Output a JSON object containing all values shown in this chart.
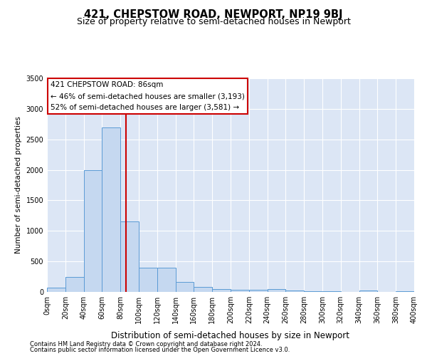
{
  "title": "421, CHEPSTOW ROAD, NEWPORT, NP19 9BJ",
  "subtitle": "Size of property relative to semi-detached houses in Newport",
  "xlabel": "Distribution of semi-detached houses by size in Newport",
  "ylabel": "Number of semi-detached properties",
  "property_size": 86,
  "annotation_line1": "421 CHEPSTOW ROAD: 86sqm",
  "annotation_line2": "← 46% of semi-detached houses are smaller (3,193)",
  "annotation_line3": "52% of semi-detached houses are larger (3,581) →",
  "footnote1": "Contains HM Land Registry data © Crown copyright and database right 2024.",
  "footnote2": "Contains public sector information licensed under the Open Government Licence v3.0.",
  "bar_color": "#c5d8f0",
  "bar_edge_color": "#5b9bd5",
  "vline_color": "#cc0000",
  "annotation_box_edgecolor": "#cc0000",
  "background_color": "#dce6f5",
  "grid_color": "#ffffff",
  "bin_starts": [
    0,
    20,
    40,
    60,
    80,
    100,
    120,
    140,
    160,
    180,
    200,
    220,
    240,
    260,
    280,
    300,
    320,
    340,
    360,
    380
  ],
  "bar_heights": [
    70,
    250,
    2000,
    2700,
    1150,
    400,
    400,
    160,
    80,
    50,
    40,
    35,
    50,
    25,
    15,
    10,
    5,
    25,
    5,
    15
  ],
  "ylim": [
    0,
    3500
  ],
  "yticks": [
    0,
    500,
    1000,
    1500,
    2000,
    2500,
    3000,
    3500
  ],
  "xlim": [
    0,
    400
  ],
  "bin_width": 20,
  "title_fontsize": 10.5,
  "subtitle_fontsize": 9,
  "xlabel_fontsize": 8.5,
  "ylabel_fontsize": 7.5,
  "tick_fontsize": 7,
  "annotation_fontsize": 7.5,
  "footnote_fontsize": 6
}
